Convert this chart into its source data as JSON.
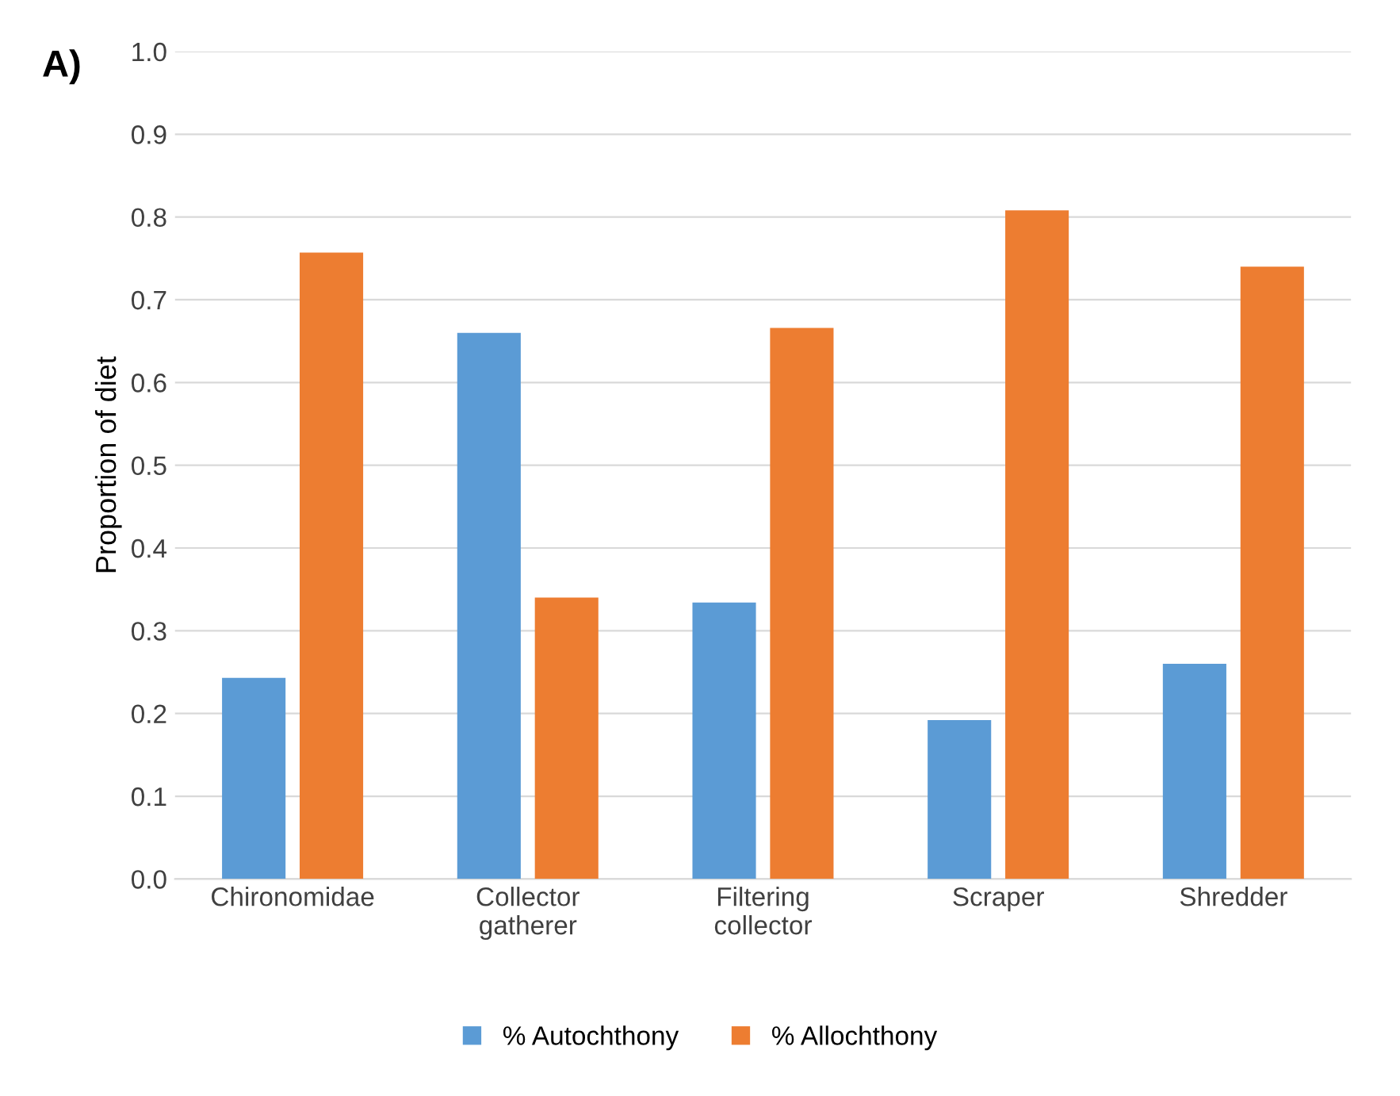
{
  "chart_data": {
    "type": "bar",
    "ylabel": "Proportion of diet",
    "annotations": [
      "A)"
    ],
    "categories": [
      "Chironomidae",
      "Collector\ngatherer",
      "Filtering\ncollector",
      "Scraper",
      "Shredder"
    ],
    "series": [
      {
        "name": "% Autochthony",
        "color": "#5b9bd5",
        "values": [
          0.243,
          0.66,
          0.334,
          0.192,
          0.26
        ]
      },
      {
        "name": "% Allochthony",
        "color": "#ed7d31",
        "values": [
          0.757,
          0.34,
          0.666,
          0.808,
          0.74
        ]
      }
    ],
    "ylim": [
      0,
      1
    ],
    "yticks": [
      {
        "value": 0,
        "label": "0.0"
      },
      {
        "value": 0.1,
        "label": "0.1"
      },
      {
        "value": 0.2,
        "label": "0.2"
      },
      {
        "value": 0.3,
        "label": "0.3"
      },
      {
        "value": 0.4,
        "label": "0.4"
      },
      {
        "value": 0.5,
        "label": "0.5"
      },
      {
        "value": 0.6,
        "label": "0.6"
      },
      {
        "value": 0.7,
        "label": "0.7"
      },
      {
        "value": 0.8,
        "label": "0.8"
      },
      {
        "value": 0.9,
        "label": "0.9"
      },
      {
        "value": 1,
        "label": "1.0"
      }
    ],
    "grid": "y",
    "legend": "bottom"
  }
}
